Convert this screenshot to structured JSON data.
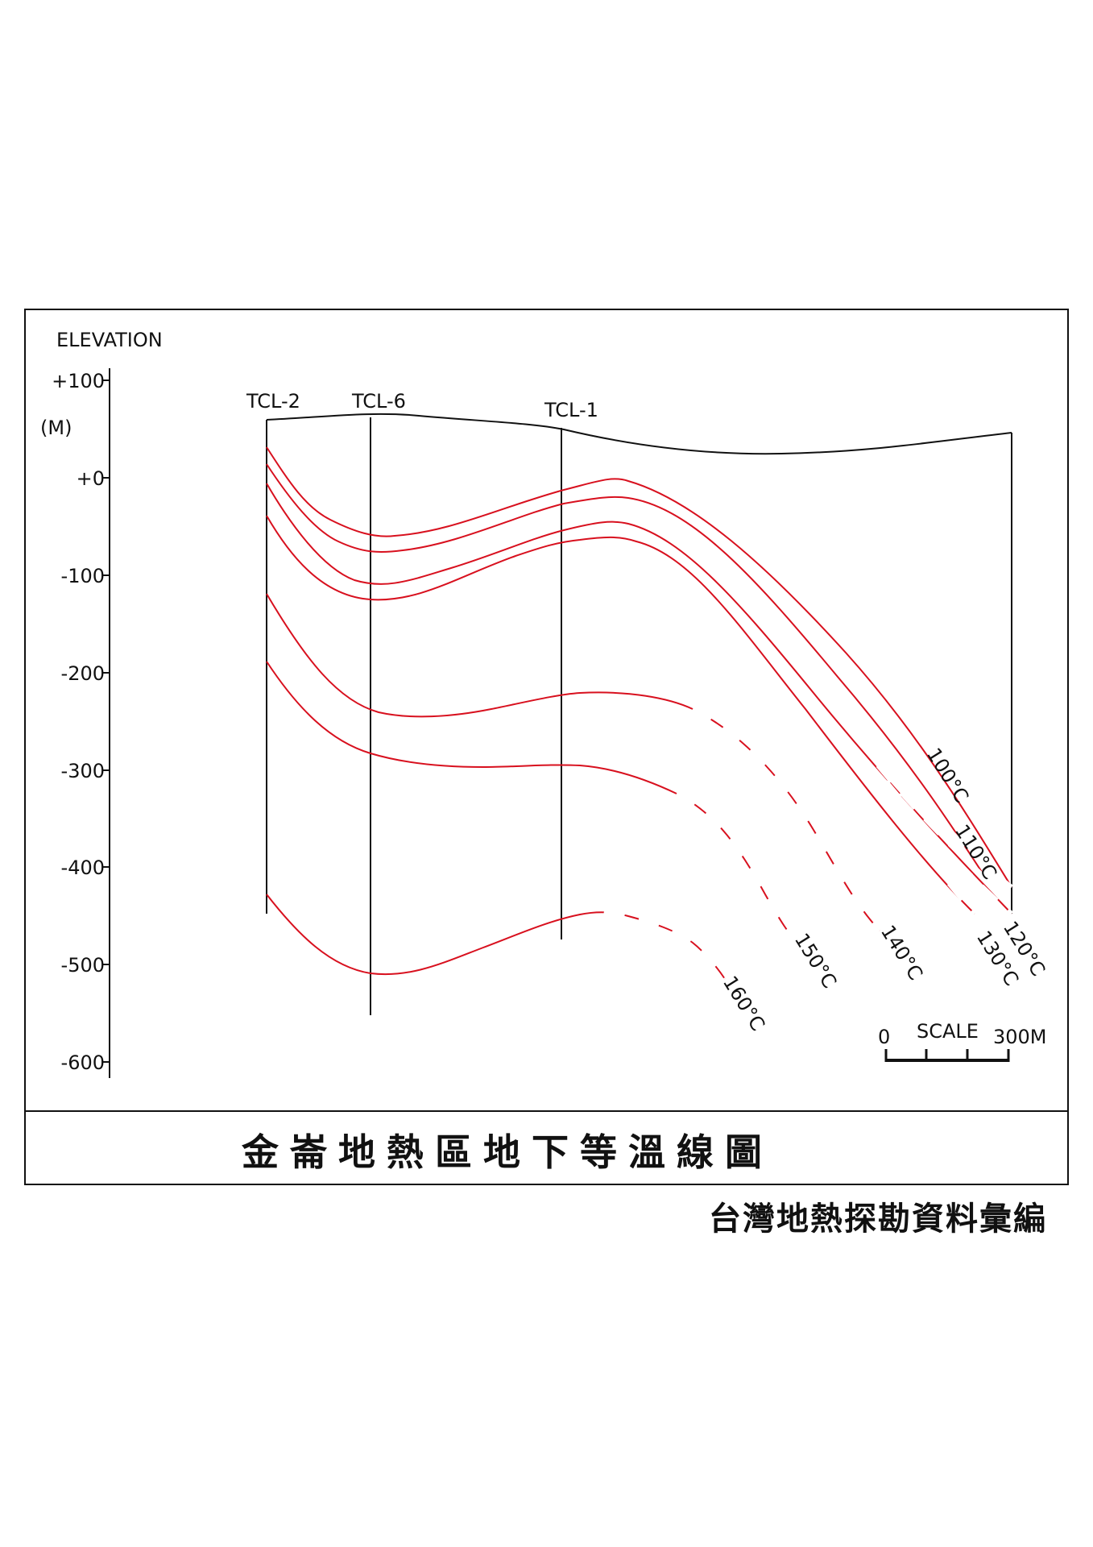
{
  "axis": {
    "label": "ELEVATION",
    "unit": "(M)",
    "ticks": [
      "+100",
      "+0",
      "-100",
      "-200",
      "-300",
      "-400",
      "-500",
      "-600"
    ]
  },
  "wells": [
    "TCL-2",
    "TCL-6",
    "TCL-1"
  ],
  "isotherms": [
    "100°C",
    "110°C",
    "120°C",
    "130°C",
    "140°C",
    "150°C",
    "160°C"
  ],
  "scale": {
    "label": "SCALE",
    "start": "0",
    "end": "300M"
  },
  "title": "金崙地熱區地下等溫線圖",
  "footer": "台灣地熱探勘資料彙編",
  "colors": {
    "isotherm": "#d8101e",
    "line": "#111111"
  }
}
